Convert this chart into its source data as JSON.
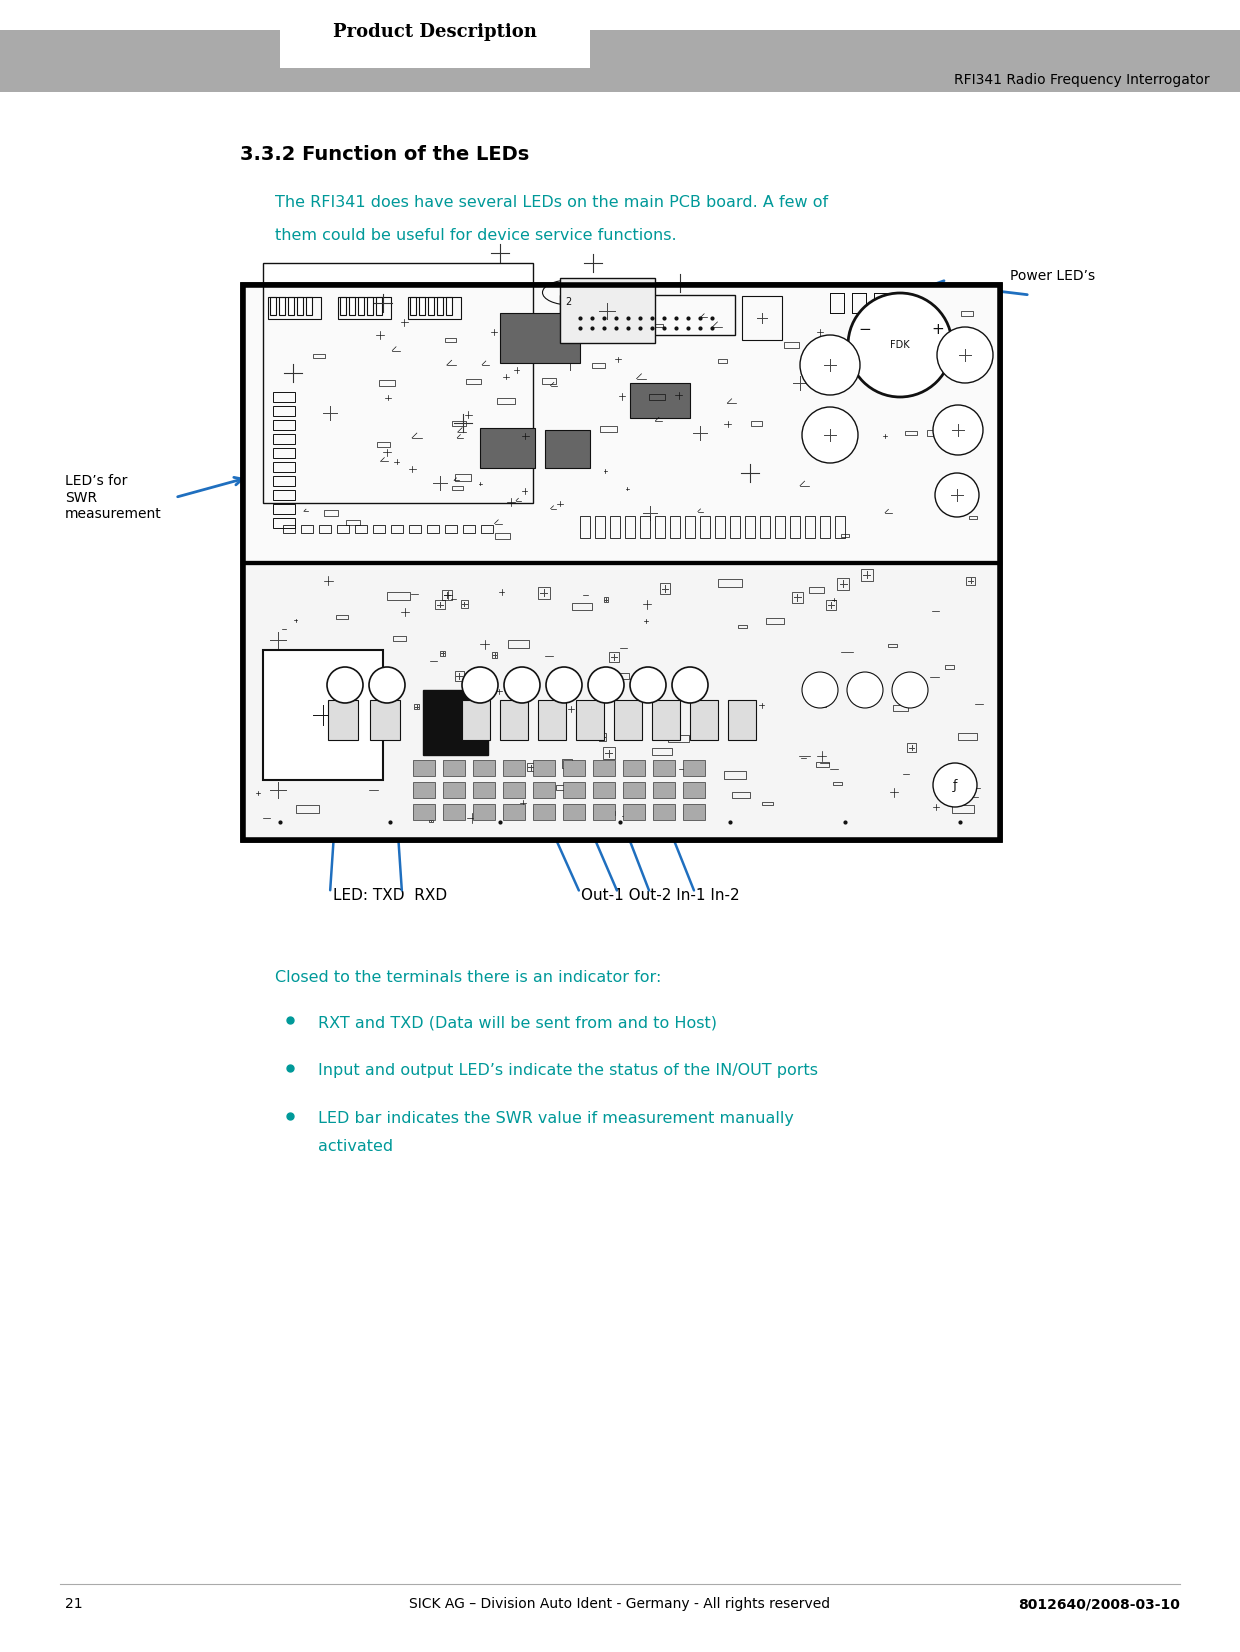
{
  "page_title": "Product Description",
  "header_right": "RFI341 Radio Frequency Interrogator",
  "section_title": "3.3.2 Function of the LEDs",
  "intro_text_line1": "The RFI341 does have several LEDs on the main PCB board. A few of",
  "intro_text_line2": "them could be useful for device service functions.",
  "teal_color": "#009999",
  "black_color": "#000000",
  "blue_arrow_color": "#1F6FBF",
  "label_power_leds": "Power LED’s",
  "label_leds_swr": "LED’s for\nSWR\nmeasurement",
  "label_txd_rxd": "LED: TXD  RXD",
  "label_out": "Out-1 Out-2 In-1 In-2",
  "closed_text": "Closed to the terminals there is an indicator for:",
  "bullet1": "RXT and TXD (Data will be sent from and to Host)",
  "bullet2": "Input and output LED’s indicate the status of the IN/OUT ports",
  "bullet3_line1": "LED bar indicates the SWR value if measurement manually",
  "bullet3_line2": "activated",
  "footer_page": "21",
  "footer_center": "SICK AG – Division Auto Ident - Germany - All rights reserved",
  "footer_right": "8012640/2008-03-10",
  "header_bar_color": "#AAAAAA",
  "bg_color": "#FFFFFF",
  "pcb_bg_upper": "#FFFFFF",
  "pcb_bg_lower": "#FFFFFF",
  "pcb_line_color": "#111111",
  "pcb_comp_color": "#222222"
}
